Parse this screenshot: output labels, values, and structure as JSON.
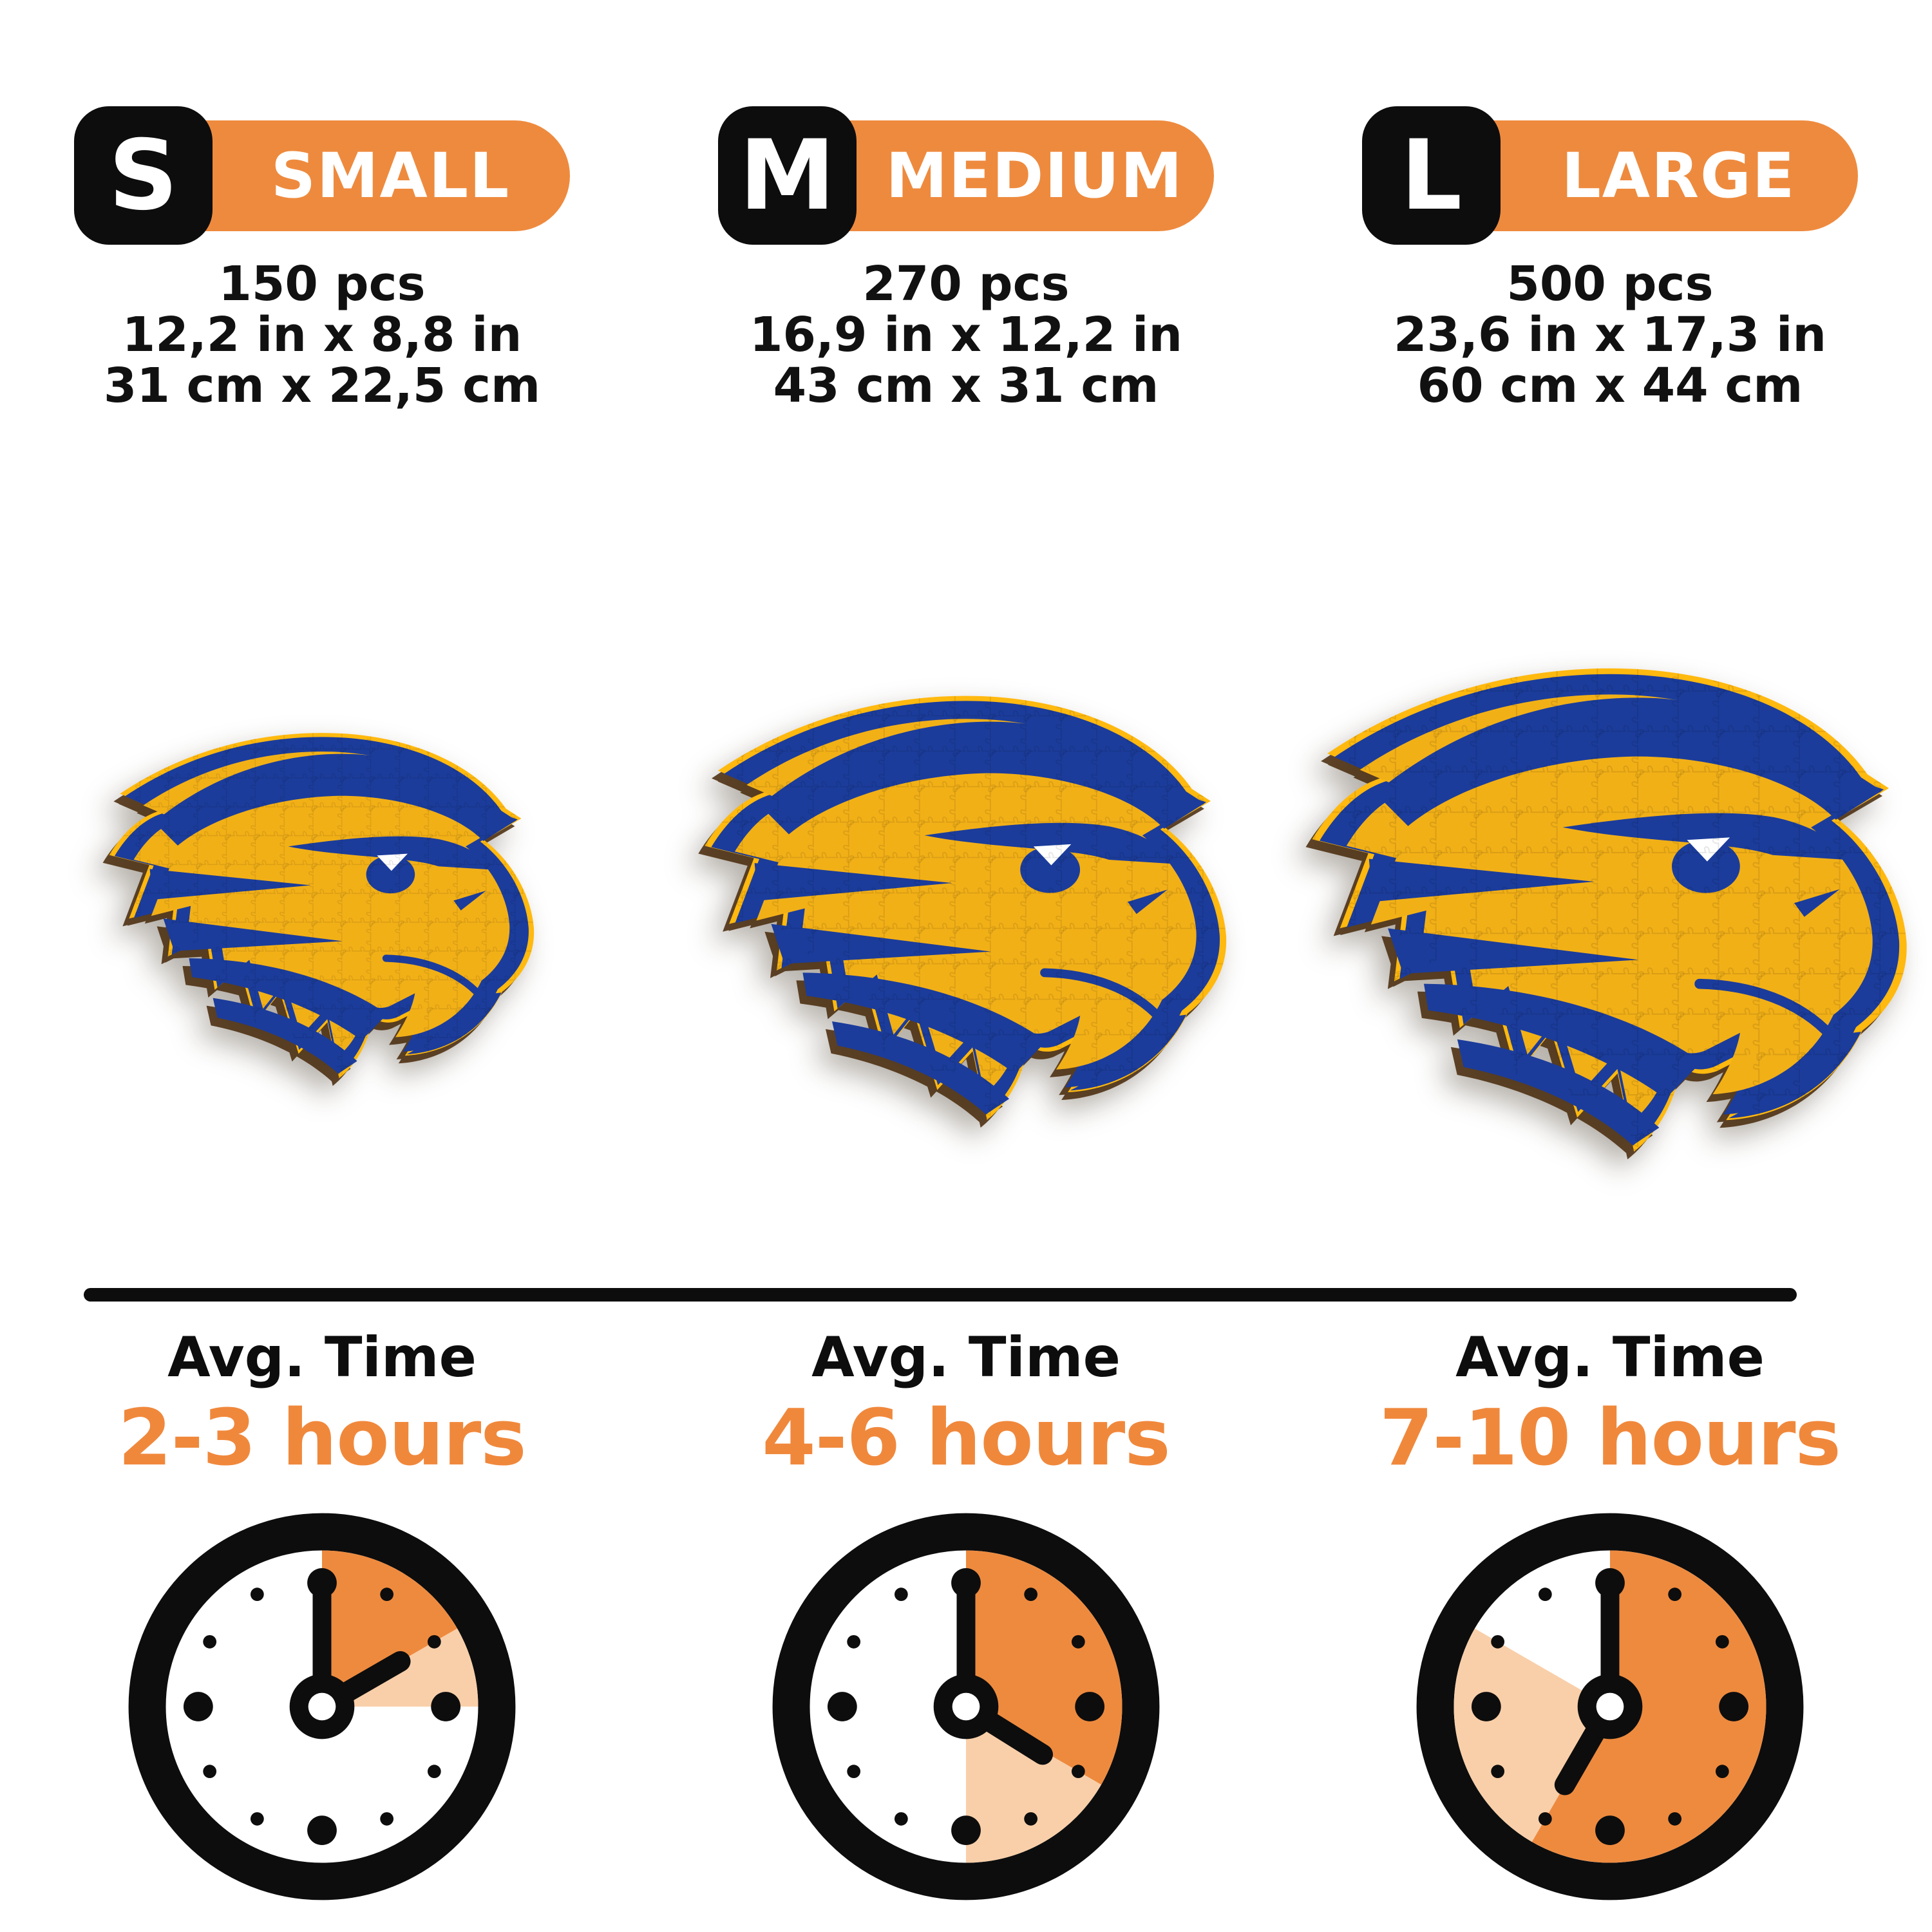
{
  "colors": {
    "orange": "#EE8A3E",
    "light_orange": "#F9CFA9",
    "black": "#0D0D0D",
    "time_value_orange": "#F0883C",
    "eagle_gold": "#F2B017",
    "eagle_blue": "#1B3C9B",
    "eagle_gold_border": "#FFB90F"
  },
  "labels": {
    "avg_time": "Avg. Time"
  },
  "sizes": [
    {
      "code": "S",
      "label": "SMALL",
      "pieces": "150 pcs",
      "dimensions_in": "12,2 in x 8,8 in",
      "dimensions_cm": "31 cm x 22,5 cm",
      "avg_time": "2-3 hours",
      "clock": {
        "solid_end_deg": 60,
        "light_end_deg": 90,
        "hour_hand_deg": 60,
        "minute_hand_deg": 0
      }
    },
    {
      "code": "M",
      "label": "MEDIUM",
      "pieces": "270 pcs",
      "dimensions_in": "16,9 in x 12,2 in",
      "dimensions_cm": "43 cm x 31 cm",
      "avg_time": "4-6 hours",
      "clock": {
        "solid_end_deg": 120,
        "light_end_deg": 180,
        "hour_hand_deg": 122,
        "minute_hand_deg": 0
      }
    },
    {
      "code": "L",
      "label": "LARGE",
      "pieces": "500 pcs",
      "dimensions_in": "23,6 in x 17,3 in",
      "dimensions_cm": "60 cm x 44 cm",
      "avg_time": "7-10 hours",
      "clock": {
        "solid_end_deg": 210,
        "light_end_deg": 300,
        "hour_hand_deg": 210,
        "minute_hand_deg": 0
      }
    }
  ]
}
